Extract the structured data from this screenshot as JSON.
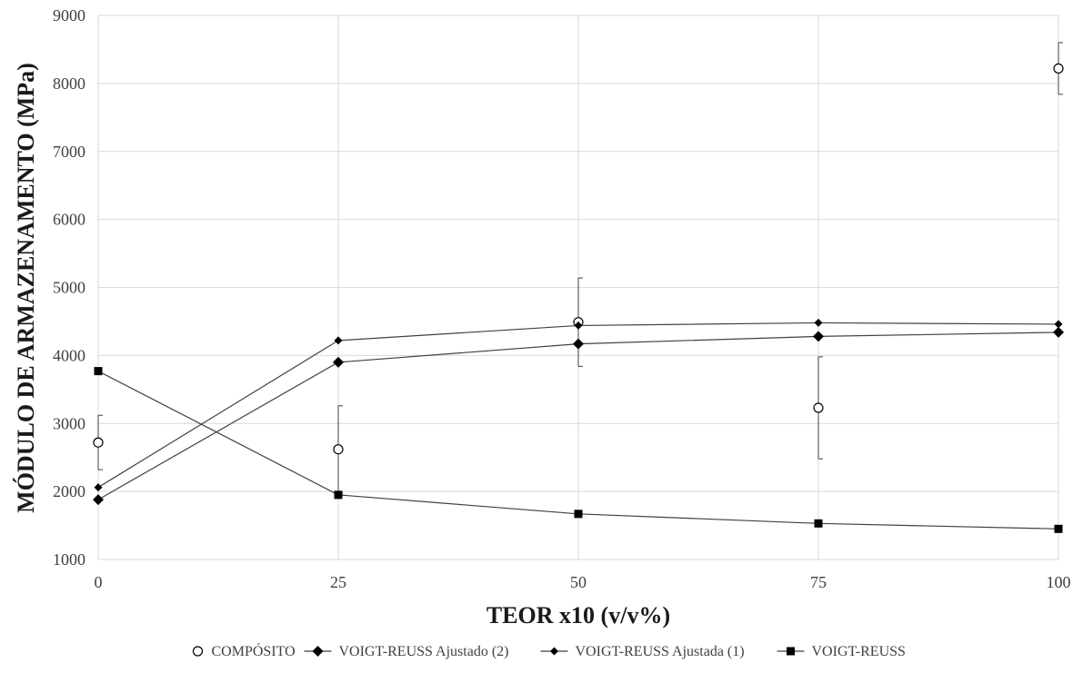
{
  "chart_data": {
    "type": "scatter",
    "title": "",
    "xlabel": "TEOR x10 (v/v%)",
    "ylabel": "MÓDULO DE ARMAZENAMENTO (MPa)",
    "xlim": [
      0,
      100
    ],
    "ylim": [
      1000,
      9000
    ],
    "xticks": [
      0,
      25,
      50,
      75,
      100
    ],
    "yticks": [
      1000,
      2000,
      3000,
      4000,
      5000,
      6000,
      7000,
      8000,
      9000
    ],
    "grid": true,
    "legend_position": "bottom",
    "series": [
      {
        "name": "COMPÓSITO",
        "marker": "open-circle",
        "line": false,
        "x": [
          0,
          25,
          50,
          75,
          100
        ],
        "y": [
          2720,
          2620,
          4490,
          3230,
          8220
        ],
        "error": [
          400,
          640,
          650,
          750,
          380
        ]
      },
      {
        "name": "VOIGT-REUSS Ajustado (2)",
        "marker": "filled-diamond-large",
        "line": true,
        "x": [
          0,
          25,
          50,
          75,
          100
        ],
        "y": [
          1880,
          3900,
          4170,
          4280,
          4340
        ]
      },
      {
        "name": "VOIGT-REUSS Ajustada (1)",
        "marker": "filled-diamond-small",
        "line": true,
        "x": [
          0,
          25,
          50,
          75,
          100
        ],
        "y": [
          2060,
          4220,
          4440,
          4480,
          4460
        ]
      },
      {
        "name": "VOIGT-REUSS",
        "marker": "filled-square",
        "line": true,
        "x": [
          0,
          25,
          50,
          75,
          100
        ],
        "y": [
          3770,
          1950,
          1670,
          1530,
          1450
        ]
      }
    ],
    "colors": {
      "grid": "#d9d9d9",
      "line": "#404040",
      "marker": "#000000",
      "text": "#404040"
    }
  }
}
